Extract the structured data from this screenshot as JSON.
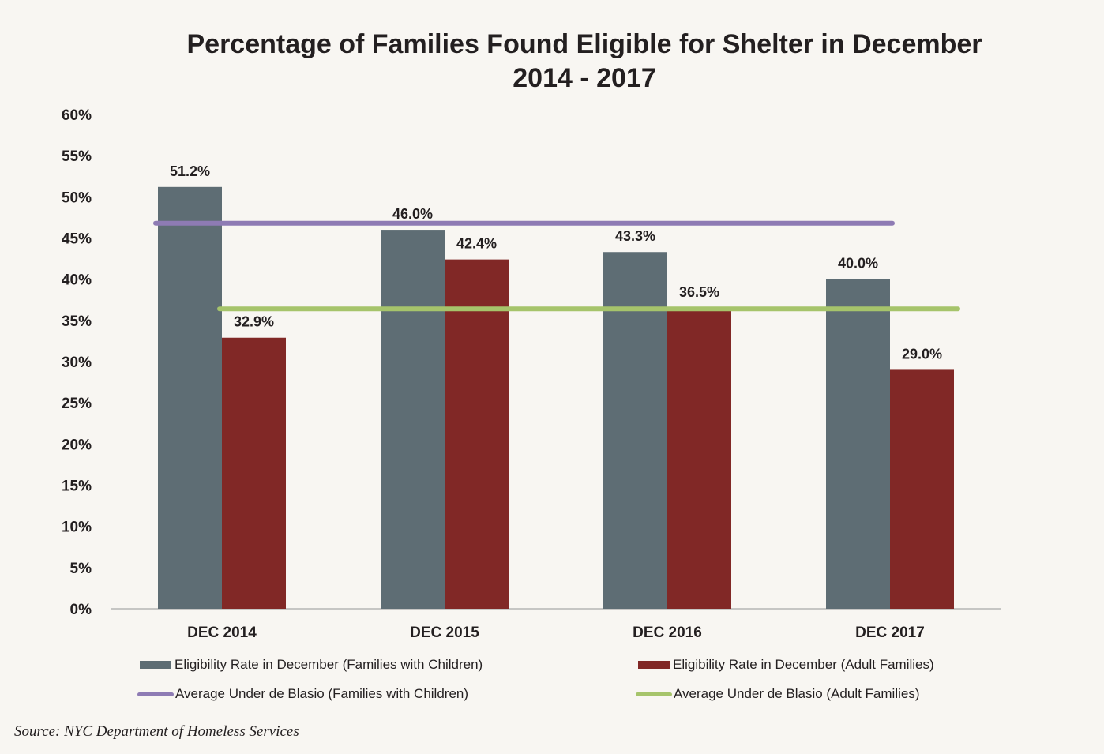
{
  "chart_data": {
    "type": "bar",
    "title": "Percentage of Families Found Eligible for Shelter in December",
    "subtitle": "2014 - 2017",
    "xlabel": "",
    "ylabel": "",
    "ylim": [
      0,
      60
    ],
    "yticks": [
      "0%",
      "5%",
      "10%",
      "15%",
      "20%",
      "25%",
      "30%",
      "35%",
      "40%",
      "45%",
      "50%",
      "55%",
      "60%"
    ],
    "categories": [
      "DEC 2014",
      "DEC 2015",
      "DEC 2016",
      "DEC 2017"
    ],
    "series": [
      {
        "name": "Eligibility Rate in December (Families with Children)",
        "color": "#5e6d74",
        "values": [
          51.2,
          46.0,
          43.3,
          40.0
        ],
        "labels": [
          "51.2%",
          "46.0%",
          "43.3%",
          "40.0%"
        ]
      },
      {
        "name": "Eligibility Rate in December (Adult Families)",
        "color": "#812826",
        "values": [
          32.9,
          42.4,
          36.5,
          29.0
        ],
        "labels": [
          "32.9%",
          "42.4%",
          "36.5%",
          "29.0%"
        ]
      }
    ],
    "reference_lines": [
      {
        "name": "Average Under de Blasio (Families with Children)",
        "color": "#8e7bb4",
        "value": 46.8
      },
      {
        "name": "Average Under de Blasio (Adult Families)",
        "color": "#a6c46b",
        "value": 36.4
      }
    ],
    "grid": false,
    "legend_position": "bottom",
    "source": "Source:  NYC Department of Homeless Services"
  }
}
